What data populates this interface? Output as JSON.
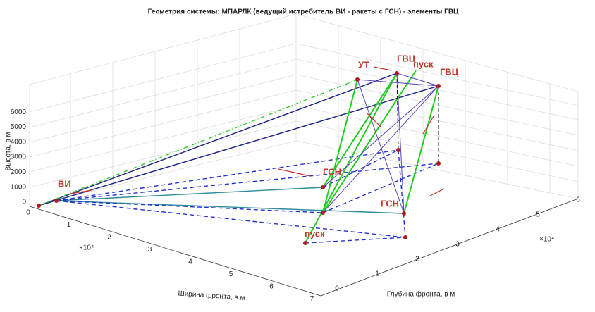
{
  "title": "Геометрия системы: МПАРЛК (ведущий истребитель ВИ - ракеты с ГСН) - элементы ГВЦ",
  "axes": {
    "z": {
      "label": "Высота, в м",
      "ticks": [
        0,
        1000,
        2000,
        3000,
        4000,
        5000,
        6000
      ]
    },
    "x": {
      "label": "Ширина фронта, в м",
      "ticks": [
        0,
        1,
        2,
        3,
        4,
        5,
        6,
        7
      ],
      "exponent": "×10⁴"
    },
    "y": {
      "label": "Глубина фронта, в м",
      "ticks": [
        0,
        1,
        2,
        3,
        4,
        5,
        6
      ],
      "exponent": "×10⁴"
    }
  },
  "points": [
    "ВИ",
    "УТ",
    "ГВЦ",
    "пуск",
    "ГВЦ",
    "ГСН",
    "ГСН",
    "пуск"
  ]
}
